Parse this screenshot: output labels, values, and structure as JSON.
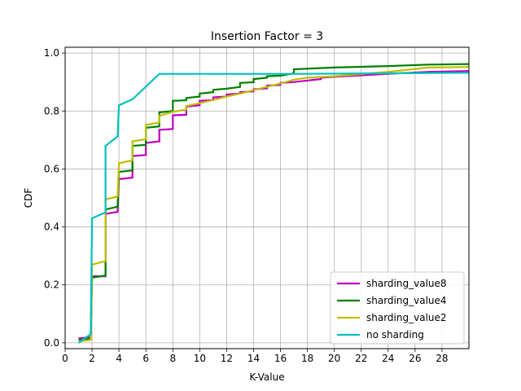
{
  "chart_data": {
    "type": "line",
    "title": "Insertion Factor = 3",
    "xlabel": "K-Value",
    "ylabel": "CDF",
    "xlim": [
      0,
      30
    ],
    "ylim": [
      -0.02,
      1.02
    ],
    "xticks": [
      0,
      2,
      4,
      6,
      8,
      10,
      12,
      14,
      16,
      18,
      20,
      22,
      24,
      26,
      28
    ],
    "yticks": [
      0.0,
      0.2,
      0.4,
      0.6,
      0.8,
      1.0
    ],
    "xtick_labels": [
      "0",
      "2",
      "4",
      "6",
      "8",
      "10",
      "12",
      "14",
      "16",
      "18",
      "20",
      "22",
      "24",
      "26",
      "28"
    ],
    "ytick_labels": [
      "0.0",
      "0.2",
      "0.4",
      "0.6",
      "0.8",
      "1.0"
    ],
    "grid": true,
    "legend_position": "lower-right",
    "series": [
      {
        "name": "sharding_value8",
        "color": "#bf00bf",
        "points": [
          [
            1,
            0.015
          ],
          [
            1.9,
            0.02
          ],
          [
            2,
            0.23
          ],
          [
            3,
            0.23
          ],
          [
            3,
            0.445
          ],
          [
            3.9,
            0.452
          ],
          [
            4,
            0.565
          ],
          [
            5,
            0.57
          ],
          [
            5,
            0.645
          ],
          [
            6,
            0.648
          ],
          [
            6,
            0.69
          ],
          [
            7,
            0.695
          ],
          [
            7,
            0.735
          ],
          [
            8,
            0.738
          ],
          [
            8,
            0.785
          ],
          [
            9,
            0.787
          ],
          [
            9,
            0.815
          ],
          [
            10,
            0.82
          ],
          [
            10,
            0.835
          ],
          [
            11,
            0.838
          ],
          [
            11,
            0.847
          ],
          [
            12,
            0.85
          ],
          [
            12,
            0.857
          ],
          [
            13,
            0.86
          ],
          [
            13,
            0.865
          ],
          [
            14,
            0.868
          ],
          [
            14,
            0.875
          ],
          [
            15,
            0.878
          ],
          [
            15,
            0.888
          ],
          [
            16,
            0.89
          ],
          [
            16,
            0.897
          ],
          [
            17,
            0.9
          ],
          [
            19,
            0.91
          ],
          [
            19,
            0.915
          ],
          [
            20,
            0.918
          ],
          [
            24,
            0.928
          ],
          [
            27,
            0.935
          ],
          [
            30,
            0.938
          ]
        ]
      },
      {
        "name": "sharding_value4",
        "color": "#008000",
        "points": [
          [
            1,
            0.01
          ],
          [
            1.9,
            0.015
          ],
          [
            2,
            0.225
          ],
          [
            3,
            0.232
          ],
          [
            3,
            0.46
          ],
          [
            3.9,
            0.47
          ],
          [
            4,
            0.59
          ],
          [
            5,
            0.595
          ],
          [
            5,
            0.68
          ],
          [
            6,
            0.683
          ],
          [
            6,
            0.742
          ],
          [
            7,
            0.747
          ],
          [
            7,
            0.795
          ],
          [
            8,
            0.8
          ],
          [
            8,
            0.835
          ],
          [
            9,
            0.837
          ],
          [
            9,
            0.845
          ],
          [
            10,
            0.85
          ],
          [
            10,
            0.86
          ],
          [
            11,
            0.865
          ],
          [
            11,
            0.873
          ],
          [
            12,
            0.877
          ],
          [
            13,
            0.883
          ],
          [
            13,
            0.897
          ],
          [
            14,
            0.899
          ],
          [
            14,
            0.91
          ],
          [
            15,
            0.915
          ],
          [
            15,
            0.92
          ],
          [
            16,
            0.922
          ],
          [
            17,
            0.93
          ],
          [
            17,
            0.944
          ],
          [
            20,
            0.95
          ],
          [
            24,
            0.955
          ],
          [
            27,
            0.96
          ],
          [
            30,
            0.962
          ]
        ]
      },
      {
        "name": "sharding_value2",
        "color": "#bfbf00",
        "points": [
          [
            1,
            0.005
          ],
          [
            1.9,
            0.01
          ],
          [
            2,
            0.27
          ],
          [
            3,
            0.282
          ],
          [
            3,
            0.495
          ],
          [
            3.9,
            0.505
          ],
          [
            4,
            0.62
          ],
          [
            5,
            0.63
          ],
          [
            5,
            0.695
          ],
          [
            6,
            0.703
          ],
          [
            6,
            0.752
          ],
          [
            7,
            0.76
          ],
          [
            7,
            0.783
          ],
          [
            8,
            0.797
          ],
          [
            9,
            0.805
          ],
          [
            9,
            0.817
          ],
          [
            10,
            0.827
          ],
          [
            11,
            0.838
          ],
          [
            12,
            0.85
          ],
          [
            13,
            0.86
          ],
          [
            14,
            0.872
          ],
          [
            15,
            0.883
          ],
          [
            16,
            0.895
          ],
          [
            17,
            0.908
          ],
          [
            18,
            0.915
          ],
          [
            20,
            0.92
          ],
          [
            24,
            0.935
          ],
          [
            27,
            0.95
          ],
          [
            30,
            0.952
          ]
        ]
      },
      {
        "name": "no sharding",
        "color": "#00bfbf",
        "points": [
          [
            1,
            0.0
          ],
          [
            1.9,
            0.03
          ],
          [
            2,
            0.43
          ],
          [
            3,
            0.45
          ],
          [
            3,
            0.68
          ],
          [
            3.9,
            0.712
          ],
          [
            4,
            0.82
          ],
          [
            5,
            0.84
          ],
          [
            7,
            0.928
          ],
          [
            17,
            0.928
          ],
          [
            24,
            0.93
          ],
          [
            30,
            0.932
          ]
        ]
      }
    ]
  }
}
